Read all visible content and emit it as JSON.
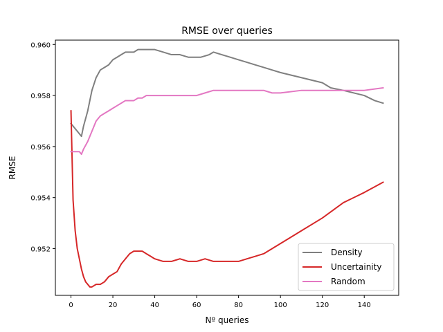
{
  "chart_data": {
    "type": "line",
    "title": "RMSE over queries",
    "xlabel": "Nº queries",
    "ylabel": "RMSE",
    "xlim": [
      -7.45,
      156.45
    ],
    "ylim": [
      0.95017,
      0.96017
    ],
    "xticks": [
      0,
      20,
      40,
      60,
      80,
      100,
      120,
      140
    ],
    "yticks": [
      0.952,
      0.954,
      0.956,
      0.958,
      0.96
    ],
    "ytick_labels": [
      "0.952",
      "0.954",
      "0.956",
      "0.958",
      "0.960"
    ],
    "grid": false,
    "legend_position": "lower right",
    "series": [
      {
        "name": "Density",
        "color": "#7f7f7f",
        "x": [
          0,
          2,
          4,
          5,
          6,
          8,
          10,
          12,
          14,
          16,
          18,
          20,
          22,
          24,
          26,
          28,
          30,
          32,
          34,
          36,
          38,
          40,
          44,
          48,
          52,
          56,
          60,
          62,
          66,
          68,
          72,
          76,
          80,
          84,
          88,
          92,
          96,
          100,
          110,
          120,
          124,
          130,
          140,
          145,
          149
        ],
        "y": [
          0.9569,
          0.9567,
          0.9565,
          0.9564,
          0.9568,
          0.9574,
          0.9582,
          0.9587,
          0.959,
          0.9591,
          0.9592,
          0.9594,
          0.9595,
          0.9596,
          0.9597,
          0.9597,
          0.9597,
          0.9598,
          0.9598,
          0.9598,
          0.9598,
          0.9598,
          0.9597,
          0.9596,
          0.9596,
          0.9595,
          0.9595,
          0.9595,
          0.9596,
          0.9597,
          0.9596,
          0.9595,
          0.9594,
          0.9593,
          0.9592,
          0.9591,
          0.959,
          0.9589,
          0.9587,
          0.9585,
          0.9583,
          0.9582,
          0.958,
          0.9578,
          0.9577
        ]
      },
      {
        "name": "Uncertainity",
        "color": "#d62728",
        "x": [
          0,
          1,
          2,
          3,
          4,
          5,
          6,
          7,
          8,
          9,
          10,
          12,
          14,
          16,
          18,
          20,
          22,
          24,
          26,
          28,
          30,
          32,
          34,
          36,
          38,
          40,
          44,
          48,
          52,
          56,
          60,
          64,
          68,
          72,
          76,
          80,
          84,
          88,
          92,
          96,
          100,
          104,
          110,
          120,
          130,
          140,
          149
        ],
        "y": [
          0.9574,
          0.9539,
          0.9527,
          0.952,
          0.9516,
          0.9512,
          0.9509,
          0.9507,
          0.9506,
          0.9505,
          0.9505,
          0.9506,
          0.9506,
          0.9507,
          0.9509,
          0.951,
          0.9511,
          0.9514,
          0.9516,
          0.9518,
          0.9519,
          0.9519,
          0.9519,
          0.9518,
          0.9517,
          0.9516,
          0.9515,
          0.9515,
          0.9516,
          0.9515,
          0.9515,
          0.9516,
          0.9515,
          0.9515,
          0.9515,
          0.9515,
          0.9516,
          0.9517,
          0.9518,
          0.952,
          0.9522,
          0.9524,
          0.9527,
          0.9532,
          0.9538,
          0.9542,
          0.9546
        ]
      },
      {
        "name": "Random",
        "color": "#e377c2",
        "x": [
          0,
          2,
          4,
          5,
          6,
          8,
          10,
          12,
          14,
          16,
          18,
          20,
          22,
          24,
          26,
          28,
          30,
          32,
          34,
          36,
          38,
          40,
          44,
          48,
          52,
          56,
          60,
          64,
          68,
          72,
          76,
          80,
          84,
          88,
          92,
          96,
          100,
          110,
          120,
          130,
          140,
          149
        ],
        "y": [
          0.9558,
          0.9558,
          0.9558,
          0.9557,
          0.9559,
          0.9562,
          0.9566,
          0.957,
          0.9572,
          0.9573,
          0.9574,
          0.9575,
          0.9576,
          0.9577,
          0.9578,
          0.9578,
          0.9578,
          0.9579,
          0.9579,
          0.958,
          0.958,
          0.958,
          0.958,
          0.958,
          0.958,
          0.958,
          0.958,
          0.9581,
          0.9582,
          0.9582,
          0.9582,
          0.9582,
          0.9582,
          0.9582,
          0.9582,
          0.9581,
          0.9581,
          0.9582,
          0.9582,
          0.9582,
          0.9582,
          0.9583
        ]
      }
    ]
  }
}
